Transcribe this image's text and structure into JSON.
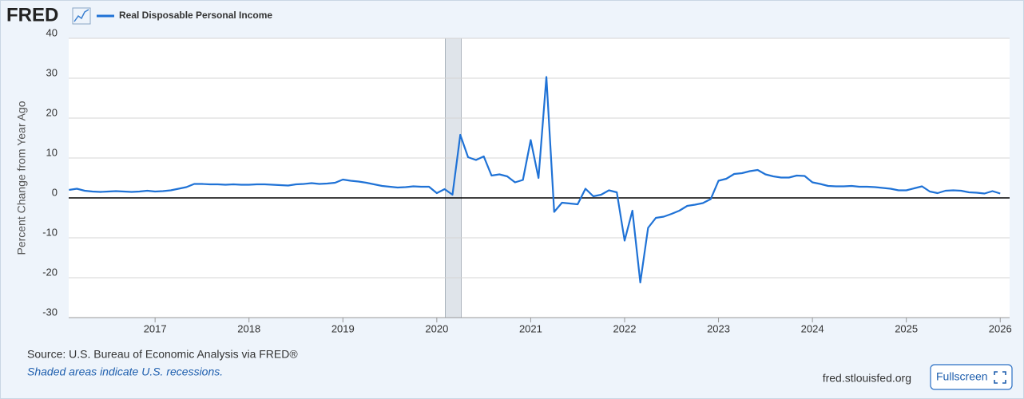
{
  "logo": "FRED",
  "footer": {
    "source": "Source: U.S. Bureau of Economic Analysis via FRED®",
    "note": "Shaded areas indicate U.S. recessions.",
    "site": "fred.stlouisfed.org",
    "button": "Fullscreen"
  },
  "chart_data": {
    "type": "line",
    "y_label": "Percent Change from Year Ago",
    "xlim": [
      2016.08,
      2026.1
    ],
    "xticks": [
      2017,
      2018,
      2019,
      2020,
      2021,
      2022,
      2023,
      2024,
      2025,
      2026
    ],
    "ylim": [
      -30,
      40
    ],
    "yticks": [
      -30,
      -20,
      -10,
      0,
      10,
      20,
      30,
      40
    ],
    "grid": true,
    "zero_line": true,
    "recessions": [
      [
        2020.09,
        2020.26
      ]
    ],
    "x": [
      2016.083,
      2016.167,
      2016.25,
      2016.333,
      2016.417,
      2016.5,
      2016.583,
      2016.667,
      2016.75,
      2016.833,
      2016.917,
      2017.0,
      2017.083,
      2017.167,
      2017.25,
      2017.333,
      2017.417,
      2017.5,
      2017.583,
      2017.667,
      2017.75,
      2017.833,
      2017.917,
      2018.0,
      2018.083,
      2018.167,
      2018.25,
      2018.333,
      2018.417,
      2018.5,
      2018.583,
      2018.667,
      2018.75,
      2018.833,
      2018.917,
      2019.0,
      2019.083,
      2019.167,
      2019.25,
      2019.333,
      2019.417,
      2019.5,
      2019.583,
      2019.667,
      2019.75,
      2019.833,
      2019.917,
      2020.0,
      2020.083,
      2020.167,
      2020.25,
      2020.333,
      2020.417,
      2020.5,
      2020.583,
      2020.667,
      2020.75,
      2020.833,
      2020.917,
      2021.0,
      2021.083,
      2021.167,
      2021.25,
      2021.333,
      2021.417,
      2021.5,
      2021.583,
      2021.667,
      2021.75,
      2021.833,
      2021.917,
      2022.0,
      2022.083,
      2022.167,
      2022.25,
      2022.333,
      2022.417,
      2022.5,
      2022.583,
      2022.667,
      2022.75,
      2022.833,
      2022.917,
      2023.0,
      2023.083,
      2023.167,
      2023.25,
      2023.333,
      2023.417,
      2023.5,
      2023.583,
      2023.667,
      2023.75,
      2023.833,
      2023.917,
      2024.0,
      2024.083,
      2024.167,
      2024.25,
      2024.333,
      2024.417,
      2024.5,
      2024.583,
      2024.667,
      2024.75,
      2024.833,
      2024.917,
      2025.0,
      2025.083,
      2025.167,
      2025.25,
      2025.333,
      2025.417,
      2025.5,
      2025.583,
      2025.667,
      2025.75,
      2025.833,
      2025.917,
      2026.0
    ],
    "series": [
      {
        "name": "Real Disposable Personal Income",
        "color": "#1f72d6",
        "values": [
          2.0,
          2.3,
          1.8,
          1.6,
          1.5,
          1.6,
          1.7,
          1.6,
          1.5,
          1.6,
          1.8,
          1.6,
          1.7,
          1.9,
          2.3,
          2.7,
          3.5,
          3.5,
          3.4,
          3.4,
          3.3,
          3.4,
          3.3,
          3.3,
          3.4,
          3.4,
          3.3,
          3.2,
          3.1,
          3.4,
          3.5,
          3.7,
          3.5,
          3.6,
          3.8,
          4.6,
          4.3,
          4.1,
          3.8,
          3.4,
          3.0,
          2.8,
          2.6,
          2.7,
          2.9,
          2.8,
          2.8,
          1.2,
          2.2,
          0.8,
          15.8,
          10.2,
          9.5,
          10.4,
          5.6,
          5.9,
          5.4,
          3.9,
          4.5,
          14.5,
          5.0,
          30.3,
          -3.5,
          -1.2,
          -1.4,
          -1.6,
          2.3,
          0.4,
          0.8,
          1.9,
          1.4,
          -10.7,
          -3.2,
          -21.2,
          -7.5,
          -5.0,
          -4.7,
          -4.0,
          -3.2,
          -2.0,
          -1.7,
          -1.3,
          -0.3,
          4.3,
          4.8,
          6.0,
          6.2,
          6.7,
          7.0,
          5.9,
          5.4,
          5.1,
          5.1,
          5.6,
          5.5,
          3.9,
          3.5,
          3.0,
          2.9,
          2.9,
          3.0,
          2.8,
          2.8,
          2.7,
          2.5,
          2.3,
          1.9,
          1.9,
          2.4,
          2.9,
          1.6,
          1.2,
          1.8,
          1.9,
          1.8,
          1.4,
          1.3,
          1.1,
          1.7,
          1.1
        ]
      }
    ]
  }
}
